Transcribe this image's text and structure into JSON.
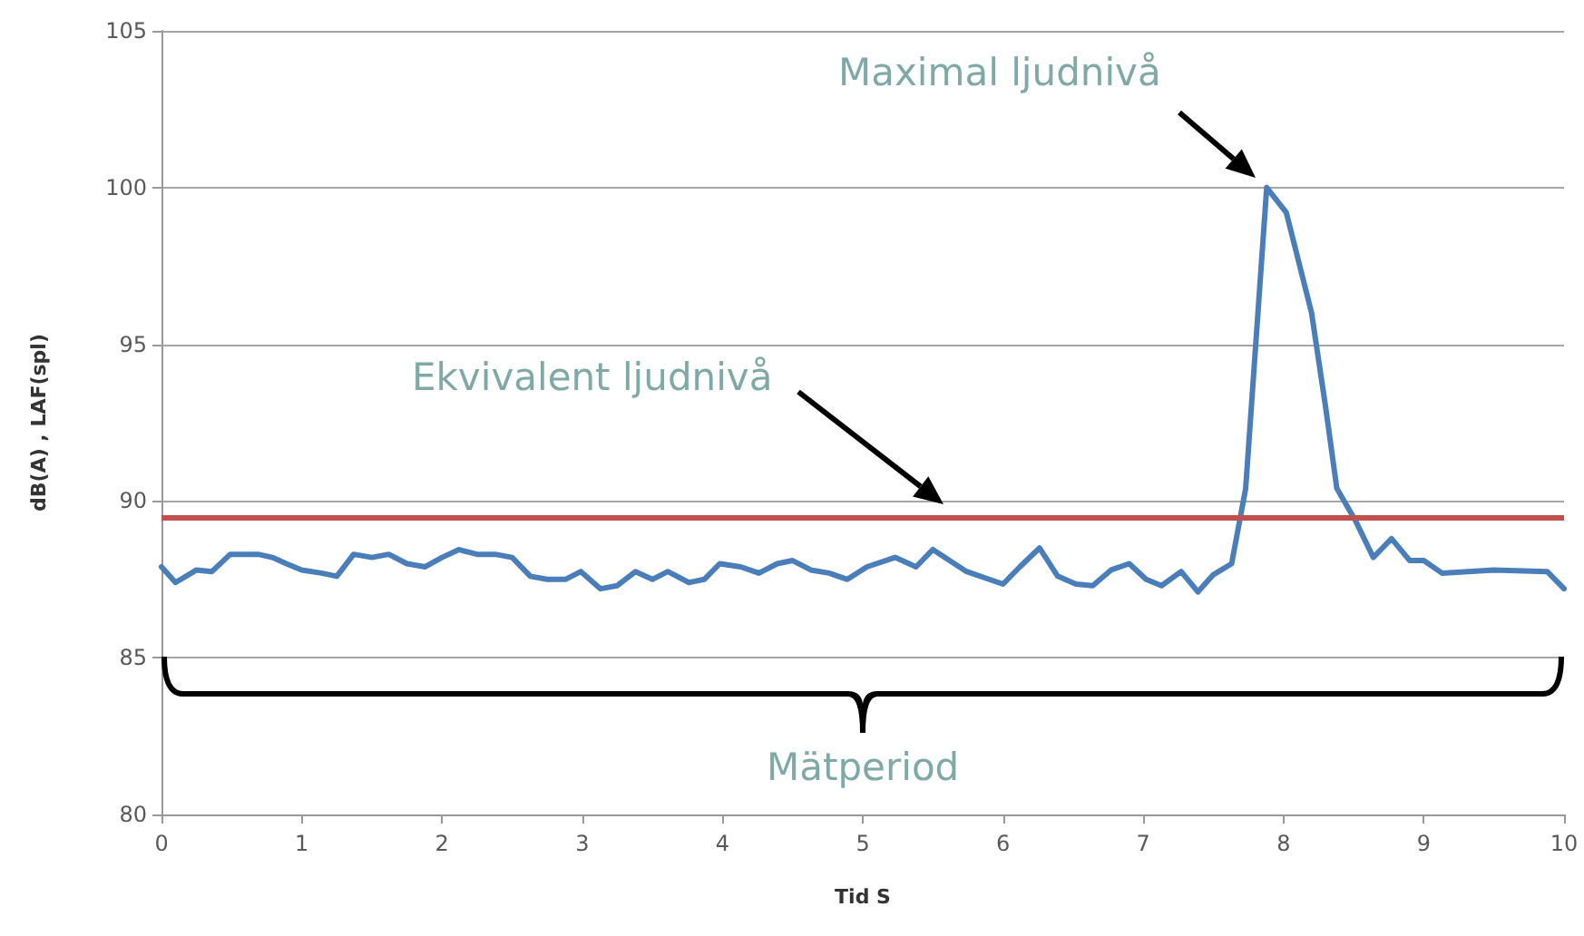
{
  "chart_data": {
    "type": "line",
    "xlabel": "Tid S",
    "ylabel": "dB(A) , LAF(spl)",
    "xlim": [
      0,
      10
    ],
    "xticks": [
      0,
      1,
      2,
      3,
      4,
      5,
      6,
      7,
      8,
      9,
      10
    ],
    "ylim": [
      80,
      105
    ],
    "yticks": [
      80,
      85,
      90,
      95,
      100,
      105
    ],
    "grid": "y",
    "marker": "none",
    "line_style": "solid",
    "series": [
      {
        "color": "#4a7ebb",
        "x": [
          0,
          0.1,
          0.25,
          0.36,
          0.49,
          0.69,
          0.79,
          0.89,
          1.0,
          1.14,
          1.25,
          1.37,
          1.5,
          1.62,
          1.75,
          1.88,
          2.0,
          2.12,
          2.25,
          2.38,
          2.5,
          2.63,
          2.75,
          2.88,
          2.99,
          3.13,
          3.25,
          3.38,
          3.5,
          3.61,
          3.76,
          3.87,
          3.98,
          4.13,
          4.26,
          4.39,
          4.5,
          4.63,
          4.76,
          4.89,
          5.03,
          5.23,
          5.38,
          5.5,
          5.74,
          6.0,
          6.12,
          6.26,
          6.39,
          6.52,
          6.64,
          6.77,
          6.9,
          7.02,
          7.13,
          7.27,
          7.39,
          7.5,
          7.63,
          7.73,
          7.88,
          8.02,
          8.2,
          8.3,
          8.38,
          8.51,
          8.64,
          8.77,
          8.9,
          9.0,
          9.13,
          9.5,
          9.88,
          10.0
        ],
        "values": [
          87.9,
          87.4,
          87.8,
          87.75,
          88.3,
          88.3,
          88.2,
          88.0,
          87.8,
          87.7,
          87.6,
          88.3,
          88.2,
          88.3,
          88.0,
          87.9,
          88.2,
          88.45,
          88.3,
          88.3,
          88.2,
          87.6,
          87.5,
          87.5,
          87.75,
          87.2,
          87.3,
          87.75,
          87.5,
          87.75,
          87.4,
          87.5,
          88.0,
          87.9,
          87.7,
          88.0,
          88.1,
          87.8,
          87.7,
          87.5,
          87.9,
          88.2,
          87.9,
          88.45,
          87.75,
          87.35,
          87.9,
          88.5,
          87.6,
          87.35,
          87.3,
          87.8,
          88.0,
          87.5,
          87.3,
          87.75,
          87.1,
          87.65,
          88.0,
          90.4,
          100,
          99.2,
          96,
          93,
          90.4,
          89.4,
          88.2,
          88.8,
          88.1,
          88.1,
          87.7,
          87.8,
          87.75,
          87.2
        ]
      }
    ],
    "ref_lines": [
      {
        "axis": "y",
        "value": 89.5,
        "color": "#c0504d"
      }
    ],
    "annotations": [
      "Maximal ljudnivå",
      "Ekvivalent ljudnivå",
      "Mätperiod"
    ]
  }
}
